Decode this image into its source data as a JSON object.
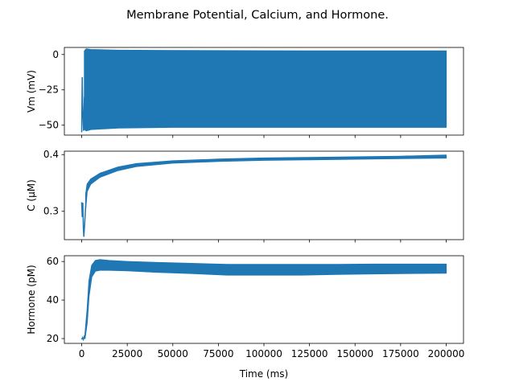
{
  "chart_data": {
    "type": "line",
    "title": "Membrane Potential, Calcium, and Hormone.",
    "xlabel": "Time (ms)",
    "xlim": [
      -9500,
      209500
    ],
    "x_ticks": [
      0,
      25000,
      50000,
      75000,
      100000,
      125000,
      150000,
      175000,
      200000
    ],
    "x_tick_labels": [
      "0",
      "25000",
      "50000",
      "75000",
      "100000",
      "125000",
      "150000",
      "175000",
      "200000"
    ],
    "line_color": "#1f77b4",
    "panels": [
      {
        "ylabel": "Vm (mV)",
        "ylim": [
          -57,
          5
        ],
        "y_ticks": [
          0,
          -25,
          -50
        ],
        "y_tick_labels": [
          "0",
          "−25",
          "−50"
        ],
        "series": [
          {
            "trace": [
              [
                0,
                -55
              ],
              [
                300,
                -16
              ],
              [
                600,
                -40
              ],
              [
                1000,
                -54
              ],
              [
                1500,
                -30
              ],
              [
                2000,
                -52
              ]
            ],
            "envelope": {
              "x": [
                1500,
                2500,
                5000,
                20000,
                50000,
                100000,
                150000,
                200000
              ],
              "upper": [
                2.5,
                4,
                3.5,
                3,
                2.8,
                2.6,
                2.5,
                2.5
              ],
              "lower": [
                -53,
                -54,
                -53,
                -52,
                -51.5,
                -51.5,
                -51.5,
                -51.5
              ]
            }
          }
        ]
      },
      {
        "ylabel": "C (μM)",
        "ylim": [
          0.25,
          0.406
        ],
        "y_ticks": [
          0.3,
          0.4
        ],
        "y_tick_labels": [
          "0.3",
          "0.4"
        ],
        "series": [
          {
            "trace": [
              [
                0,
                0.316
              ],
              [
                300,
                0.29
              ],
              [
                600,
                0.315
              ],
              [
                900,
                0.27
              ],
              [
                1200,
                0.255
              ],
              [
                1600,
                0.275
              ],
              [
                2200,
                0.31
              ]
            ],
            "envelope": {
              "x": [
                2200,
                3000,
                5000,
                10000,
                20000,
                30000,
                50000,
                75000,
                100000,
                125000,
                150000,
                175000,
                200000
              ],
              "upper": [
                0.33,
                0.348,
                0.357,
                0.367,
                0.378,
                0.384,
                0.389,
                0.392,
                0.394,
                0.395,
                0.396,
                0.397,
                0.399
              ],
              "lower": [
                0.305,
                0.335,
                0.348,
                0.36,
                0.372,
                0.379,
                0.385,
                0.388,
                0.39,
                0.391,
                0.392,
                0.393,
                0.394
              ]
            }
          }
        ]
      },
      {
        "ylabel": "Hormone (pM)",
        "ylim": [
          17.5,
          63
        ],
        "y_ticks": [
          20,
          40,
          60
        ],
        "y_tick_labels": [
          "20",
          "40",
          "60"
        ],
        "series": [
          {
            "trace": [
              [
                0,
                19.5
              ],
              [
                500,
                20.5
              ],
              [
                900,
                19.5
              ],
              [
                1400,
                21
              ],
              [
                1800,
                20
              ]
            ],
            "envelope": {
              "x": [
                1800,
                3000,
                4000,
                5500,
                7500,
                10000,
                15000,
                25000,
                40000,
                60000,
                80000,
                100000,
                120000,
                140000,
                160000,
                180000,
                200000
              ],
              "upper": [
                22,
                35,
                50,
                58,
                60.5,
                61,
                60.5,
                60,
                59.5,
                59,
                58.5,
                58.5,
                58.5,
                58.5,
                58.6,
                58.6,
                58.6
              ],
              "lower": [
                20,
                28,
                42,
                52,
                55,
                55.5,
                55.5,
                55.2,
                54.5,
                53.8,
                53,
                53,
                53,
                53.3,
                53.6,
                53.8,
                54
              ]
            }
          }
        ]
      }
    ]
  }
}
